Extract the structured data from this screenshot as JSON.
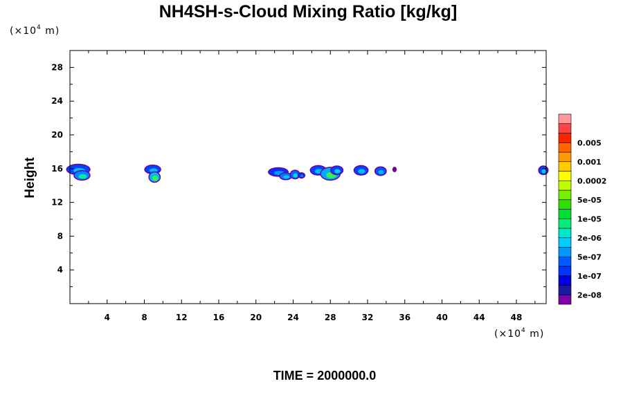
{
  "chart_data": {
    "type": "heatmap",
    "title": "NH4SH-s-Cloud Mixing Ratio [kg/kg]",
    "ylabel": "Height",
    "x_unit": "(×10",
    "x_unit_exp": "4",
    "x_unit_tail": " m)",
    "y_unit": "(×10",
    "y_unit_exp": "4",
    "y_unit_tail": " m)",
    "xlim": [
      0,
      51.2
    ],
    "ylim": [
      0,
      30
    ],
    "x_ticks": [
      4,
      8,
      12,
      16,
      20,
      24,
      28,
      32,
      36,
      40,
      44,
      48
    ],
    "y_ticks": [
      4,
      8,
      12,
      16,
      20,
      24,
      28
    ],
    "x_tick_labels": [
      "4",
      "8",
      "12",
      "16",
      "20",
      "24",
      "28",
      "32",
      "36",
      "40",
      "44",
      "48"
    ],
    "y_tick_labels": [
      "4",
      "8",
      "12",
      "16",
      "20",
      "24",
      "28"
    ],
    "time_label": "TIME = 2000000.0",
    "colorbar": {
      "colors": [
        "#7d00a8",
        "#1a1aa0",
        "#0000d8",
        "#0033ff",
        "#005cff",
        "#0099ff",
        "#00ccff",
        "#00e8cc",
        "#00ee77",
        "#00dd33",
        "#33dd00",
        "#77ee00",
        "#bbff00",
        "#ffff00",
        "#ffcc00",
        "#ff9900",
        "#ff6600",
        "#ff2200",
        "#ff4444",
        "#ff9999"
      ],
      "labels": [
        "2e-08",
        "1e-07",
        "5e-07",
        "2e-06",
        "1e-05",
        "5e-05",
        "0.0002",
        "0.001",
        "0.005"
      ]
    },
    "cloud_cells": [
      {
        "x": 0.9,
        "y": 15.9,
        "rx": 1.2,
        "ry": 0.55,
        "core": "#0044ff",
        "inner": "#00bbee"
      },
      {
        "x": 1.3,
        "y": 15.2,
        "rx": 0.8,
        "ry": 0.5,
        "core": "#0088ff",
        "inner": "#00ee99"
      },
      {
        "x": 8.9,
        "y": 15.9,
        "rx": 0.8,
        "ry": 0.45,
        "core": "#0044ff",
        "inner": "#00bbee"
      },
      {
        "x": 9.1,
        "y": 15.0,
        "rx": 0.55,
        "ry": 0.55,
        "core": "#00bbee",
        "inner": "#44ee44"
      },
      {
        "x": 22.4,
        "y": 15.6,
        "rx": 1.0,
        "ry": 0.45,
        "core": "#0033ff",
        "inner": "#0099ff"
      },
      {
        "x": 23.2,
        "y": 15.1,
        "rx": 0.6,
        "ry": 0.35,
        "core": "#0077ff",
        "inner": "#00ccff"
      },
      {
        "x": 24.2,
        "y": 15.3,
        "rx": 0.45,
        "ry": 0.45,
        "core": "#0066ff",
        "inner": "#00ddcc"
      },
      {
        "x": 24.9,
        "y": 15.2,
        "rx": 0.3,
        "ry": 0.25,
        "core": "#0033ff",
        "inner": "#0088ff"
      },
      {
        "x": 26.7,
        "y": 15.8,
        "rx": 0.8,
        "ry": 0.5,
        "core": "#0044ff",
        "inner": "#00bbee"
      },
      {
        "x": 28.0,
        "y": 15.4,
        "rx": 1.0,
        "ry": 0.7,
        "core": "#00aaff",
        "inner": "#33ee55"
      },
      {
        "x": 28.7,
        "y": 15.8,
        "rx": 0.6,
        "ry": 0.45,
        "core": "#0044ff",
        "inner": "#00ccee"
      },
      {
        "x": 31.3,
        "y": 15.8,
        "rx": 0.7,
        "ry": 0.5,
        "core": "#0044ff",
        "inner": "#00bbee"
      },
      {
        "x": 33.4,
        "y": 15.7,
        "rx": 0.55,
        "ry": 0.45,
        "core": "#0055ff",
        "inner": "#00bbee"
      },
      {
        "x": 34.9,
        "y": 15.9,
        "rx": 0.12,
        "ry": 0.2,
        "core": "#7d00a8",
        "inner": "#7d00a8"
      },
      {
        "x": 50.9,
        "y": 15.8,
        "rx": 0.45,
        "ry": 0.45,
        "core": "#0044ff",
        "inner": "#00ccee"
      }
    ]
  }
}
